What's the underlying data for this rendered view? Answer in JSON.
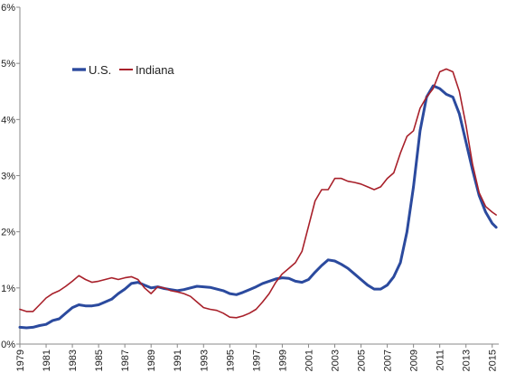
{
  "chart_data": {
    "type": "line",
    "title": "",
    "xlabel": "",
    "ylabel": "",
    "x_range": [
      1979,
      2015.5
    ],
    "ylim": [
      0,
      6
    ],
    "x_ticks": [
      "1979",
      "1981",
      "1983",
      "1985",
      "1987",
      "1989",
      "1991",
      "1993",
      "1995",
      "1997",
      "1999",
      "2001",
      "2003",
      "2005",
      "2007",
      "2009",
      "2011",
      "2013",
      "2015"
    ],
    "y_ticks": [
      {
        "value": 0,
        "label": "0%"
      },
      {
        "value": 1,
        "label": "1%"
      },
      {
        "value": 2,
        "label": "2%"
      },
      {
        "value": 3,
        "label": "3%"
      },
      {
        "value": 4,
        "label": "4%"
      },
      {
        "value": 5,
        "label": "5%"
      },
      {
        "value": 6,
        "label": "6%"
      }
    ],
    "grid": false,
    "legend_position": "upper-left",
    "series": [
      {
        "name": "U.S.",
        "color": "#2b4a9e",
        "width": 3,
        "points": [
          [
            1979.0,
            0.3
          ],
          [
            1979.5,
            0.29
          ],
          [
            1980.0,
            0.3
          ],
          [
            1980.5,
            0.33
          ],
          [
            1981.0,
            0.35
          ],
          [
            1981.5,
            0.42
          ],
          [
            1982.0,
            0.45
          ],
          [
            1982.5,
            0.55
          ],
          [
            1983.0,
            0.65
          ],
          [
            1983.5,
            0.7
          ],
          [
            1984.0,
            0.68
          ],
          [
            1984.5,
            0.68
          ],
          [
            1985.0,
            0.7
          ],
          [
            1985.5,
            0.75
          ],
          [
            1986.0,
            0.8
          ],
          [
            1986.5,
            0.9
          ],
          [
            1987.0,
            0.98
          ],
          [
            1987.5,
            1.08
          ],
          [
            1988.0,
            1.1
          ],
          [
            1988.5,
            1.05
          ],
          [
            1989.0,
            1.0
          ],
          [
            1989.5,
            1.02
          ],
          [
            1990.0,
            0.99
          ],
          [
            1990.5,
            0.97
          ],
          [
            1991.0,
            0.95
          ],
          [
            1991.5,
            0.97
          ],
          [
            1992.0,
            1.0
          ],
          [
            1992.5,
            1.03
          ],
          [
            1993.0,
            1.02
          ],
          [
            1993.5,
            1.01
          ],
          [
            1994.0,
            0.98
          ],
          [
            1994.5,
            0.95
          ],
          [
            1995.0,
            0.9
          ],
          [
            1995.5,
            0.88
          ],
          [
            1996.0,
            0.92
          ],
          [
            1996.5,
            0.97
          ],
          [
            1997.0,
            1.02
          ],
          [
            1997.5,
            1.08
          ],
          [
            1998.0,
            1.12
          ],
          [
            1998.5,
            1.16
          ],
          [
            1999.0,
            1.18
          ],
          [
            1999.5,
            1.17
          ],
          [
            2000.0,
            1.12
          ],
          [
            2000.5,
            1.1
          ],
          [
            2001.0,
            1.15
          ],
          [
            2001.5,
            1.28
          ],
          [
            2002.0,
            1.4
          ],
          [
            2002.5,
            1.5
          ],
          [
            2003.0,
            1.48
          ],
          [
            2003.5,
            1.42
          ],
          [
            2004.0,
            1.35
          ],
          [
            2004.5,
            1.25
          ],
          [
            2005.0,
            1.15
          ],
          [
            2005.5,
            1.05
          ],
          [
            2006.0,
            0.98
          ],
          [
            2006.5,
            0.98
          ],
          [
            2007.0,
            1.05
          ],
          [
            2007.5,
            1.2
          ],
          [
            2008.0,
            1.45
          ],
          [
            2008.5,
            2.0
          ],
          [
            2009.0,
            2.8
          ],
          [
            2009.5,
            3.8
          ],
          [
            2010.0,
            4.4
          ],
          [
            2010.5,
            4.6
          ],
          [
            2011.0,
            4.55
          ],
          [
            2011.5,
            4.45
          ],
          [
            2012.0,
            4.4
          ],
          [
            2012.5,
            4.1
          ],
          [
            2013.0,
            3.6
          ],
          [
            2013.5,
            3.1
          ],
          [
            2014.0,
            2.65
          ],
          [
            2014.5,
            2.35
          ],
          [
            2015.0,
            2.15
          ],
          [
            2015.3,
            2.08
          ]
        ]
      },
      {
        "name": "Indiana",
        "color": "#a8202a",
        "width": 1.6,
        "points": [
          [
            1979.0,
            0.62
          ],
          [
            1979.5,
            0.58
          ],
          [
            1980.0,
            0.58
          ],
          [
            1980.5,
            0.7
          ],
          [
            1981.0,
            0.82
          ],
          [
            1981.5,
            0.9
          ],
          [
            1982.0,
            0.95
          ],
          [
            1982.5,
            1.03
          ],
          [
            1983.0,
            1.12
          ],
          [
            1983.5,
            1.22
          ],
          [
            1984.0,
            1.15
          ],
          [
            1984.5,
            1.1
          ],
          [
            1985.0,
            1.12
          ],
          [
            1985.5,
            1.15
          ],
          [
            1986.0,
            1.18
          ],
          [
            1986.5,
            1.15
          ],
          [
            1987.0,
            1.18
          ],
          [
            1987.5,
            1.2
          ],
          [
            1988.0,
            1.15
          ],
          [
            1988.5,
            1.0
          ],
          [
            1989.0,
            0.9
          ],
          [
            1989.5,
            1.02
          ],
          [
            1990.0,
            1.0
          ],
          [
            1990.5,
            0.95
          ],
          [
            1991.0,
            0.93
          ],
          [
            1991.5,
            0.9
          ],
          [
            1992.0,
            0.85
          ],
          [
            1992.5,
            0.75
          ],
          [
            1993.0,
            0.65
          ],
          [
            1993.5,
            0.62
          ],
          [
            1994.0,
            0.6
          ],
          [
            1994.5,
            0.55
          ],
          [
            1995.0,
            0.48
          ],
          [
            1995.5,
            0.47
          ],
          [
            1996.0,
            0.5
          ],
          [
            1996.5,
            0.55
          ],
          [
            1997.0,
            0.62
          ],
          [
            1997.5,
            0.75
          ],
          [
            1998.0,
            0.9
          ],
          [
            1998.5,
            1.1
          ],
          [
            1999.0,
            1.25
          ],
          [
            1999.5,
            1.35
          ],
          [
            2000.0,
            1.45
          ],
          [
            2000.5,
            1.65
          ],
          [
            2001.0,
            2.1
          ],
          [
            2001.5,
            2.55
          ],
          [
            2002.0,
            2.75
          ],
          [
            2002.5,
            2.75
          ],
          [
            2003.0,
            2.95
          ],
          [
            2003.5,
            2.95
          ],
          [
            2004.0,
            2.9
          ],
          [
            2004.5,
            2.88
          ],
          [
            2005.0,
            2.85
          ],
          [
            2005.5,
            2.8
          ],
          [
            2006.0,
            2.75
          ],
          [
            2006.5,
            2.8
          ],
          [
            2007.0,
            2.95
          ],
          [
            2007.5,
            3.05
          ],
          [
            2008.0,
            3.4
          ],
          [
            2008.5,
            3.7
          ],
          [
            2009.0,
            3.8
          ],
          [
            2009.5,
            4.2
          ],
          [
            2010.0,
            4.4
          ],
          [
            2010.5,
            4.55
          ],
          [
            2011.0,
            4.85
          ],
          [
            2011.5,
            4.9
          ],
          [
            2012.0,
            4.85
          ],
          [
            2012.5,
            4.5
          ],
          [
            2013.0,
            3.9
          ],
          [
            2013.5,
            3.2
          ],
          [
            2014.0,
            2.7
          ],
          [
            2014.5,
            2.45
          ],
          [
            2015.0,
            2.35
          ],
          [
            2015.3,
            2.3
          ]
        ]
      }
    ]
  }
}
